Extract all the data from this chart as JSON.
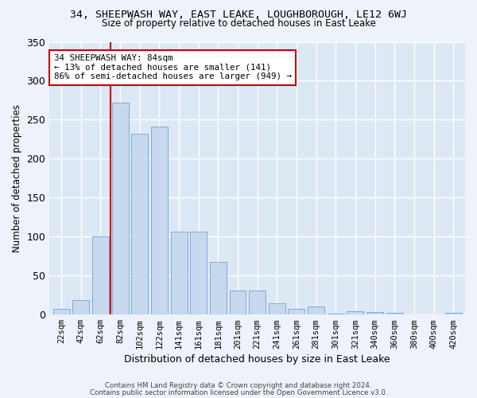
{
  "title": "34, SHEEPWASH WAY, EAST LEAKE, LOUGHBOROUGH, LE12 6WJ",
  "subtitle": "Size of property relative to detached houses in East Leake",
  "xlabel": "Distribution of detached houses by size in East Leake",
  "ylabel": "Number of detached properties",
  "bar_color": "#c8d8ef",
  "bar_edge_color": "#7aadd4",
  "background_color": "#dde8f5",
  "grid_color": "#ffffff",
  "fig_bg_color": "#eef2fa",
  "categories": [
    "22sqm",
    "42sqm",
    "62sqm",
    "82sqm",
    "102sqm",
    "122sqm",
    "141sqm",
    "161sqm",
    "181sqm",
    "201sqm",
    "221sqm",
    "241sqm",
    "261sqm",
    "281sqm",
    "301sqm",
    "321sqm",
    "340sqm",
    "360sqm",
    "380sqm",
    "400sqm",
    "420sqm"
  ],
  "values": [
    7,
    19,
    100,
    272,
    232,
    241,
    106,
    106,
    68,
    31,
    31,
    15,
    7,
    10,
    1,
    4,
    3,
    2,
    0,
    0,
    2
  ],
  "ylim": [
    0,
    350
  ],
  "yticks": [
    0,
    50,
    100,
    150,
    200,
    250,
    300,
    350
  ],
  "property_line_x": 3,
  "annotation_text": "34 SHEEPWASH WAY: 84sqm\n← 13% of detached houses are smaller (141)\n86% of semi-detached houses are larger (949) →",
  "annotation_box_color": "#ffffff",
  "annotation_box_edge": "#cc0000",
  "red_line_color": "#cc0000",
  "footer_line1": "Contains HM Land Registry data © Crown copyright and database right 2024.",
  "footer_line2": "Contains public sector information licensed under the Open Government Licence v3.0."
}
